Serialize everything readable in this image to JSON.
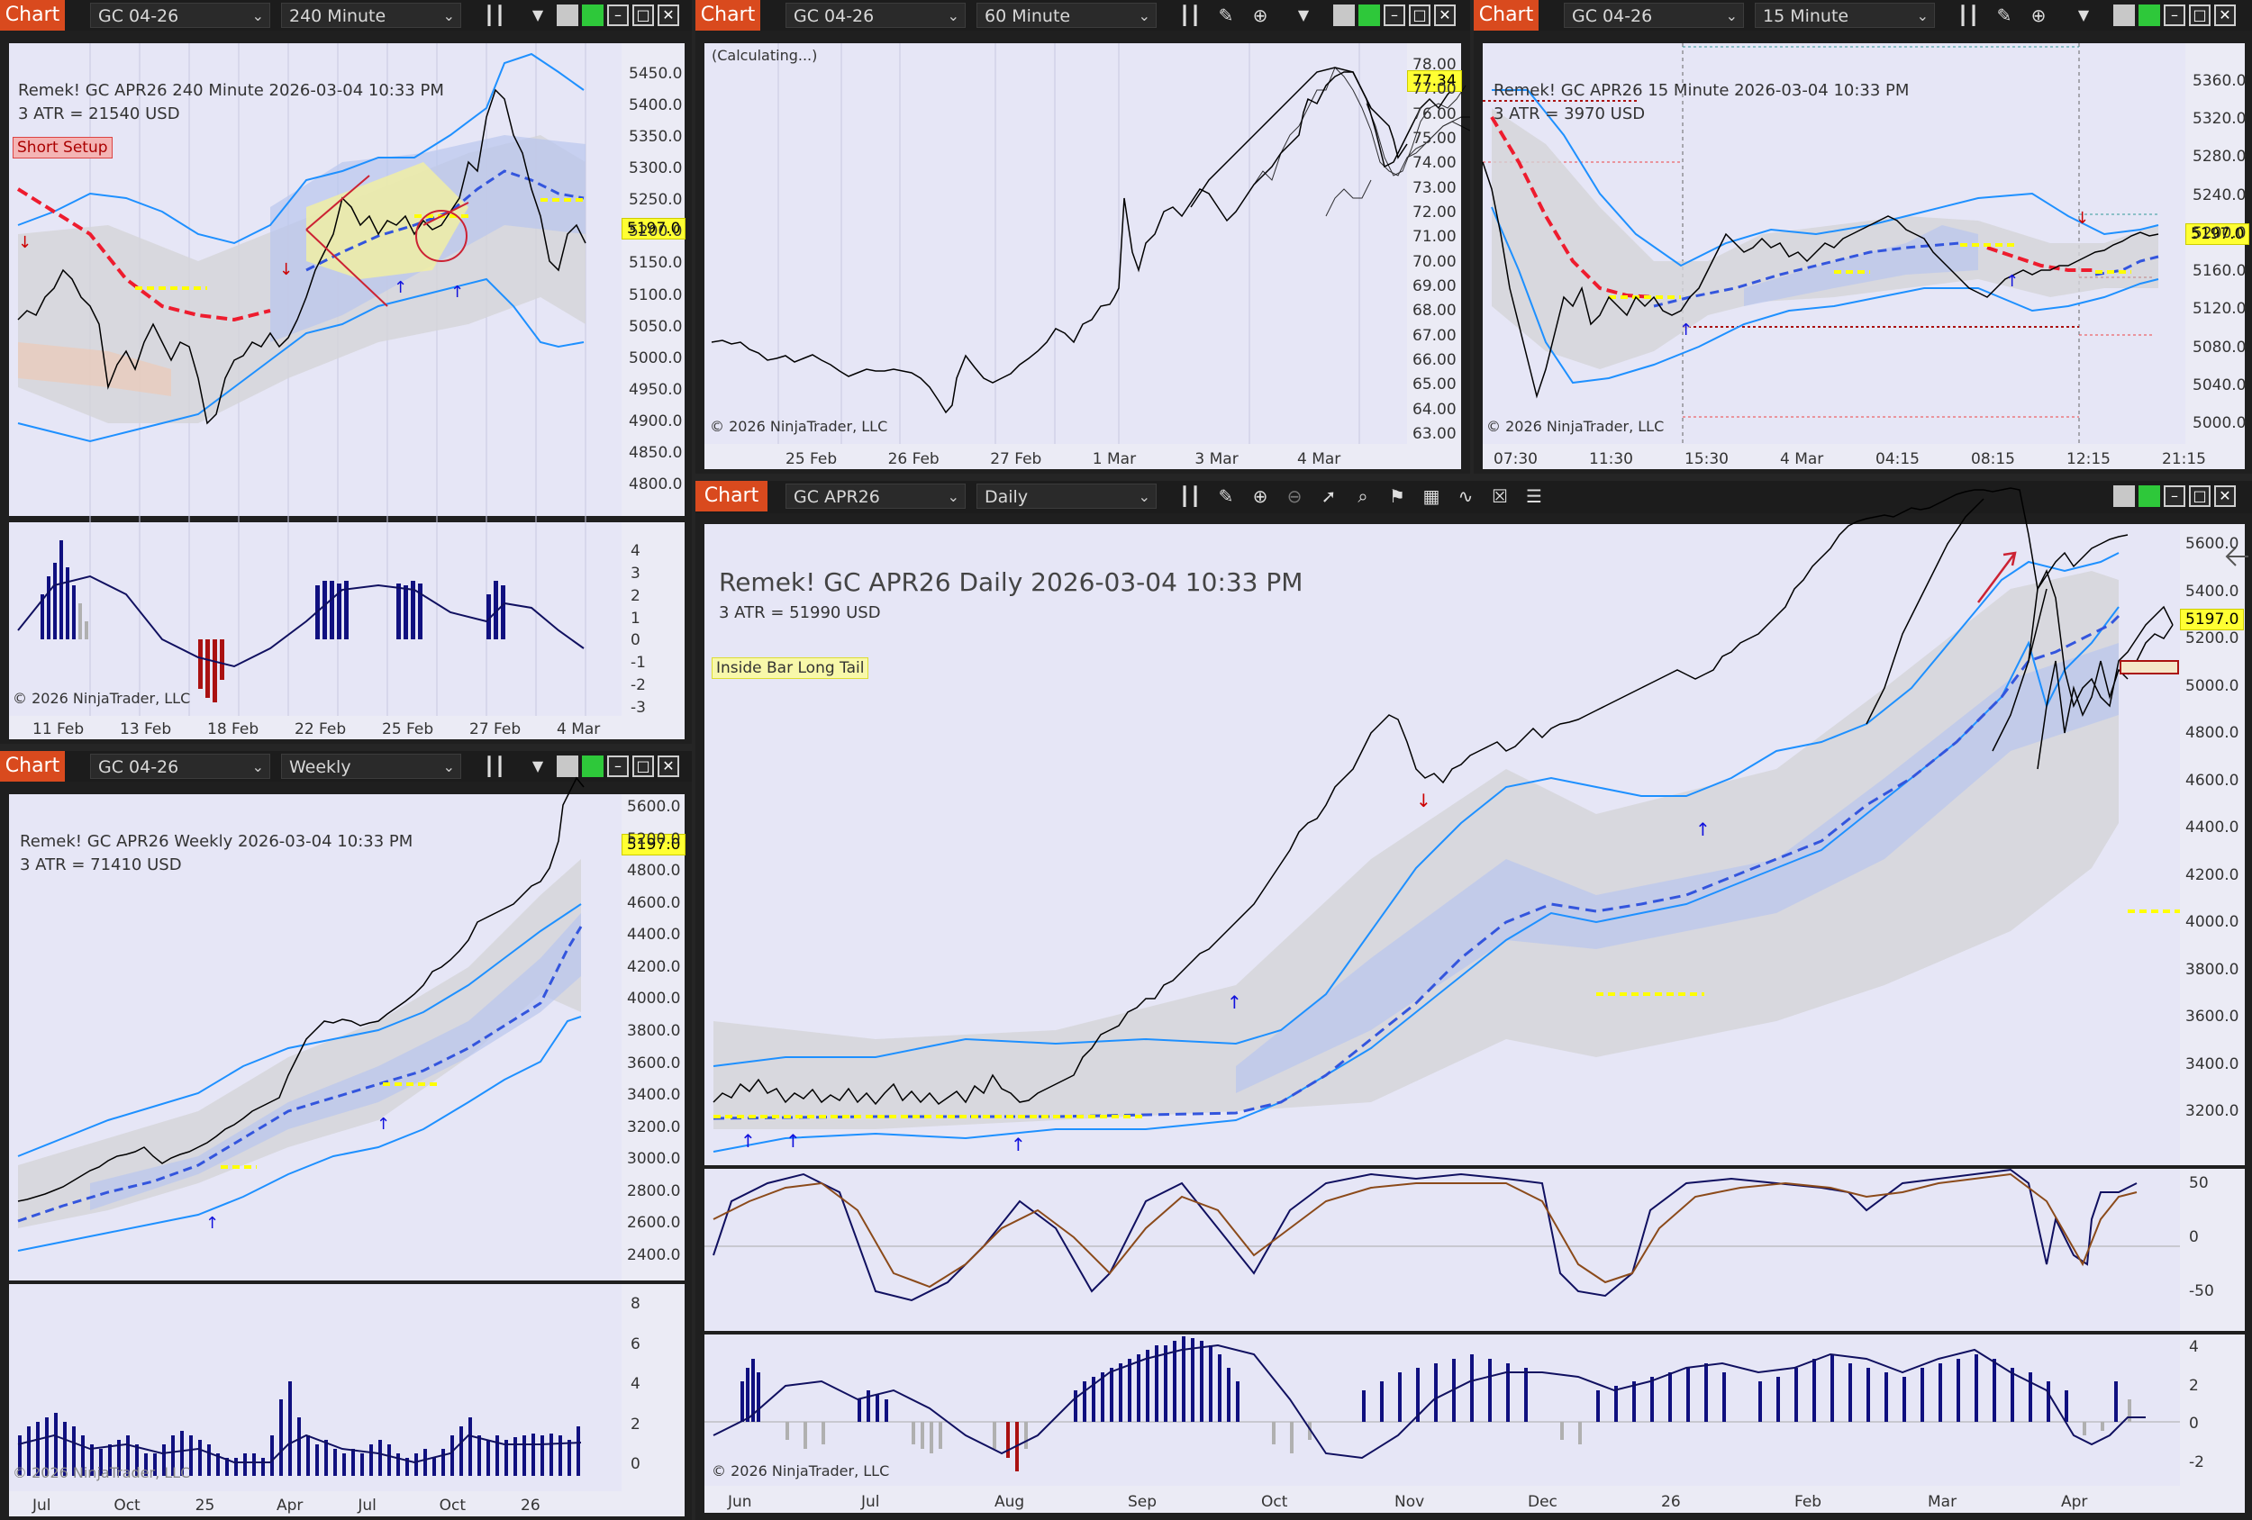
{
  "windows": {
    "w240": {
      "tag": "Chart",
      "instrument": "GC 04-26",
      "interval": "240 Minute",
      "title": "Remek!  GC APR26  240 Minute  2026-03-04 10:33 PM",
      "atr": "3 ATR = 21540 USD",
      "setup": "Short Setup",
      "price_tag": "5197.0",
      "copyright": "© 2026 NinjaTrader, LLC",
      "yticks": [
        "5450.0",
        "5400.0",
        "5350.0",
        "5300.0",
        "5250.0",
        "5200.0",
        "5150.0",
        "5100.0",
        "5050.0",
        "5000.0",
        "4950.0",
        "4900.0",
        "4850.0",
        "4800.0"
      ],
      "osc_ticks": [
        "4",
        "3",
        "2",
        "1",
        "0",
        "-1",
        "-2",
        "-3"
      ],
      "xticks": [
        "11 Feb",
        "13 Feb",
        "18 Feb",
        "22 Feb",
        "25 Feb",
        "27 Feb",
        "4 Mar"
      ]
    },
    "w60": {
      "tag": "Chart",
      "instrument": "GC 04-26",
      "interval": "60 Minute",
      "status": "(Calculating...)",
      "price_tag": "77.34",
      "copyright": "© 2026 NinjaTrader, LLC",
      "yticks": [
        "78.00",
        "77.00",
        "76.00",
        "75.00",
        "74.00",
        "73.00",
        "72.00",
        "71.00",
        "70.00",
        "69.00",
        "68.00",
        "67.00",
        "66.00",
        "65.00",
        "64.00",
        "63.00"
      ],
      "xticks": [
        "25 Feb",
        "26 Feb",
        "27 Feb",
        "1 Mar",
        "3 Mar",
        "4 Mar"
      ]
    },
    "w15": {
      "tag": "Chart",
      "instrument": "GC 04-26",
      "interval": "15 Minute",
      "title": "Remek!  GC APR26  15 Minute  2026-03-04 10:33 PM",
      "atr": "3 ATR = 3970 USD",
      "price_tag": "5197.0",
      "copyright": "© 2026 NinjaTrader, LLC",
      "yticks": [
        "5360.0",
        "5320.0",
        "5280.0",
        "5240.0",
        "5200.0",
        "5160.0",
        "5120.0",
        "5080.0",
        "5040.0",
        "5000.0"
      ],
      "xticks": [
        "07:30",
        "11:30",
        "15:30",
        "4 Mar",
        "04:15",
        "08:15",
        "12:15",
        "21:15"
      ]
    },
    "wweekly": {
      "tag": "Chart",
      "instrument": "GC 04-26",
      "interval": "Weekly",
      "title": "Remek!  GC APR26  Weekly  2026-03-04 10:33 PM",
      "atr": "3 ATR = 71410 USD",
      "price_tag": "5197.0",
      "copyright": "© 2026 NinjaTrader, LLC",
      "yticks": [
        "5600.0",
        "5200.0",
        "4800.0",
        "4600.0",
        "4400.0",
        "4200.0",
        "4000.0",
        "3800.0",
        "3600.0",
        "3400.0",
        "3200.0",
        "3000.0",
        "2800.0",
        "2600.0",
        "2400.0"
      ],
      "osc_ticks": [
        "8",
        "6",
        "4",
        "2",
        "0"
      ],
      "xticks": [
        "Jul",
        "Oct",
        "25",
        "Apr",
        "Jul",
        "Oct",
        "26"
      ]
    },
    "wdaily": {
      "tag": "Chart",
      "instrument": "GC APR26",
      "interval": "Daily",
      "title": "Remek!  GC APR26  Daily  2026-03-04 10:33 PM",
      "atr": "3 ATR = 51990 USD",
      "setup": "Inside Bar Long Tail",
      "price_tag": "5197.0",
      "copyright": "© 2026 NinjaTrader, LLC",
      "yticks": [
        "5600.0",
        "5400.0",
        "5200.0",
        "5000.0",
        "4800.0",
        "4600.0",
        "4400.0",
        "4200.0",
        "4000.0",
        "3800.0",
        "3600.0",
        "3400.0",
        "3200.0"
      ],
      "stoch_ticks": [
        "50",
        "0",
        "-50"
      ],
      "osc_ticks": [
        "4",
        "2",
        "0",
        "-2"
      ],
      "xticks": [
        "Jun",
        "Jul",
        "Aug",
        "Sep",
        "Oct",
        "Nov",
        "Dec",
        "26",
        "Feb",
        "Mar",
        "Apr"
      ]
    }
  }
}
